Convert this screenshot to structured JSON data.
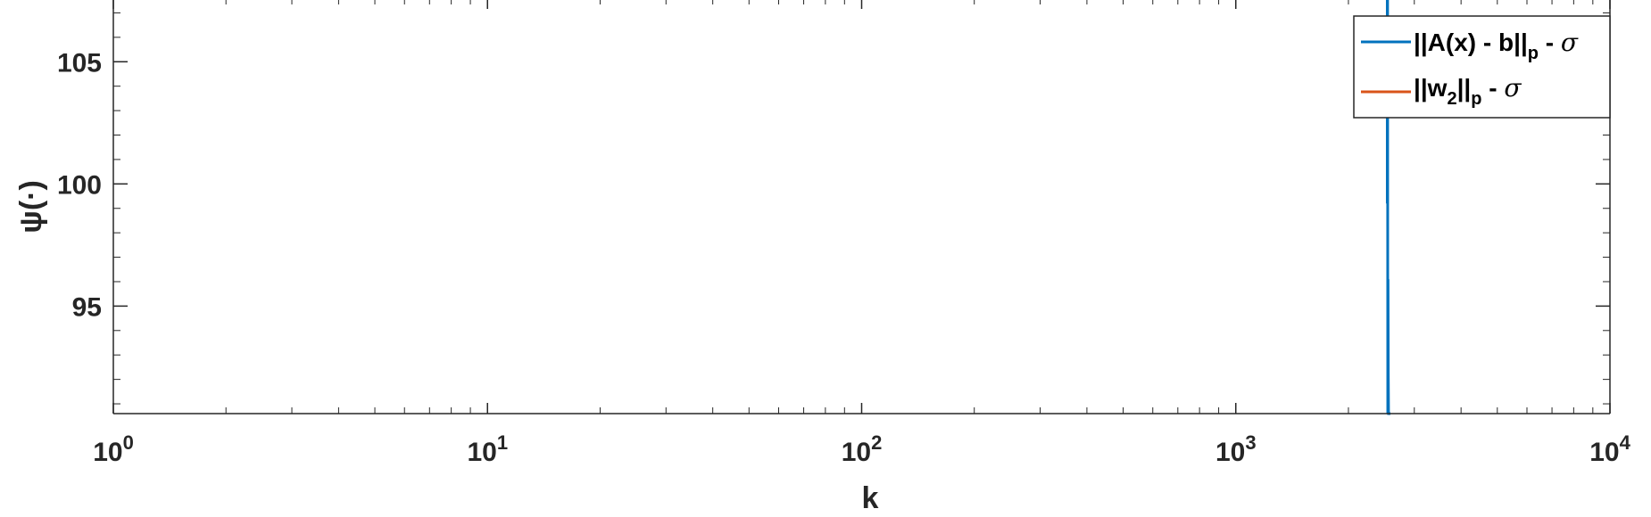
{
  "chart_data": {
    "type": "line",
    "xscale": "log",
    "xlim": [
      1,
      10000
    ],
    "ylim": [
      90.6,
      107.6
    ],
    "xlabel": "k",
    "ylabel": "ψ(·)",
    "xticks": [
      {
        "value": 1,
        "base": "10",
        "exp": "0"
      },
      {
        "value": 10,
        "base": "10",
        "exp": "1"
      },
      {
        "value": 100,
        "base": "10",
        "exp": "2"
      },
      {
        "value": 1000,
        "base": "10",
        "exp": "3"
      },
      {
        "value": 10000,
        "base": "10",
        "exp": "4"
      }
    ],
    "yticks": [
      95,
      100,
      105
    ],
    "grid": false,
    "legend_location": "top-right",
    "colors": {
      "series1": "#0072BD",
      "series2": "#D95319",
      "axis": "#262626"
    },
    "series": [
      {
        "name": "||A(x) - b||p - σ",
        "color": "#0072BD",
        "points": [
          [
            2,
            107.6
          ],
          [
            2540,
            107.6
          ],
          [
            2540,
            99.2
          ],
          [
            2545,
            107.6
          ],
          [
            2548,
            90.6
          ],
          [
            2552,
            96.1
          ],
          [
            2556,
            92.2
          ],
          [
            2560,
            90.6
          ],
          [
            2590,
            90.6
          ]
        ]
      },
      {
        "name": "||w2||p - σ",
        "color": "#D95319",
        "points": []
      }
    ],
    "legend": {
      "entry1": {
        "bars": "||",
        "main": "A(x) - b",
        "sub": "p",
        "tail": " - ",
        "sigma": "σ"
      },
      "entry2": {
        "bars": "||",
        "main": "w",
        "mainsub": "2",
        "sub": "p",
        "tail": " - ",
        "sigma": "σ"
      }
    }
  }
}
